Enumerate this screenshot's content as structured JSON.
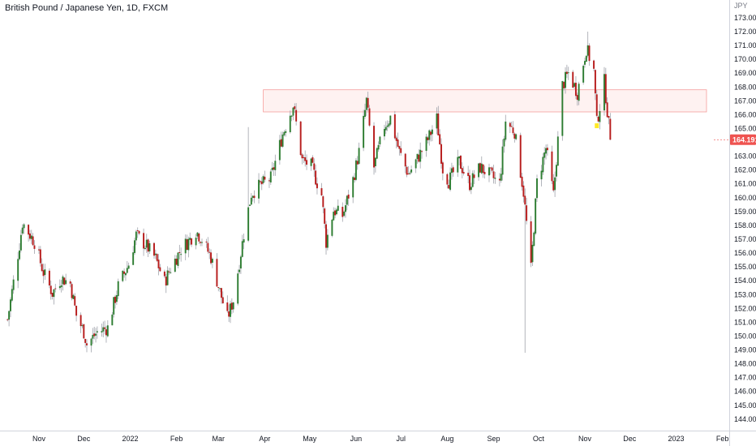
{
  "chart_data": {
    "type": "candlestick",
    "title": "British Pound / Japanese Yen, 1D, FXCM",
    "y_unit": "JPY",
    "ylim": [
      143.7,
      173.7
    ],
    "y_ticks": [
      "144.000",
      "145.000",
      "146.000",
      "147.000",
      "148.000",
      "149.000",
      "150.000",
      "151.000",
      "152.000",
      "153.000",
      "154.000",
      "155.000",
      "156.000",
      "157.000",
      "158.000",
      "159.000",
      "160.000",
      "161.000",
      "162.000",
      "163.000",
      "164.000",
      "165.000",
      "166.000",
      "167.000",
      "168.000",
      "169.000",
      "170.000",
      "171.000",
      "172.000",
      "173.000"
    ],
    "x_ticks": [
      {
        "label": "Nov",
        "date": "2021-11-01"
      },
      {
        "label": "Dec",
        "date": "2021-12-01"
      },
      {
        "label": "2022",
        "date": "2022-01-01"
      },
      {
        "label": "Feb",
        "date": "2022-02-01"
      },
      {
        "label": "Mar",
        "date": "2022-03-01"
      },
      {
        "label": "Apr",
        "date": "2022-04-01"
      },
      {
        "label": "May",
        "date": "2022-05-01"
      },
      {
        "label": "Jun",
        "date": "2022-06-01"
      },
      {
        "label": "Jul",
        "date": "2022-07-01"
      },
      {
        "label": "Aug",
        "date": "2022-08-01"
      },
      {
        "label": "Sep",
        "date": "2022-09-01"
      },
      {
        "label": "Oct",
        "date": "2022-10-01"
      },
      {
        "label": "Nov",
        "date": "2022-11-01"
      },
      {
        "label": "Dec",
        "date": "2022-12-01"
      },
      {
        "label": "2023",
        "date": "2023-01-01"
      },
      {
        "label": "Feb",
        "date": "2023-02-01"
      }
    ],
    "price_path": [
      [
        "2021-10-11",
        151.2
      ],
      [
        "2021-10-19",
        156.6
      ],
      [
        "2021-10-21",
        158.2
      ],
      [
        "2021-10-29",
        156.8
      ],
      [
        "2021-11-04",
        154.6
      ],
      [
        "2021-11-10",
        153.1
      ],
      [
        "2021-11-16",
        154.2
      ],
      [
        "2021-11-22",
        153.8
      ],
      [
        "2021-11-26",
        151.5
      ],
      [
        "2021-12-01",
        150.3
      ],
      [
        "2021-12-03",
        149.4
      ],
      [
        "2021-12-10",
        150.3
      ],
      [
        "2021-12-17",
        150.6
      ],
      [
        "2021-12-24",
        153.6
      ],
      [
        "2021-12-31",
        155.2
      ],
      [
        "2022-01-05",
        157.3
      ],
      [
        "2022-01-12",
        156.5
      ],
      [
        "2022-01-18",
        155.6
      ],
      [
        "2022-01-24",
        153.9
      ],
      [
        "2022-01-28",
        154.9
      ],
      [
        "2022-02-04",
        156.3
      ],
      [
        "2022-02-10",
        157.0
      ],
      [
        "2022-02-14",
        157.6
      ],
      [
        "2022-02-18",
        157.0
      ],
      [
        "2022-02-24",
        155.7
      ],
      [
        "2022-03-01",
        153.6
      ],
      [
        "2022-03-07",
        151.3
      ],
      [
        "2022-03-11",
        152.6
      ],
      [
        "2022-03-18",
        157.4
      ],
      [
        "2022-03-23",
        160.3
      ],
      [
        "2022-03-29",
        160.9
      ],
      [
        "2022-04-05",
        161.4
      ],
      [
        "2022-04-13",
        164.6
      ],
      [
        "2022-04-20",
        166.7
      ],
      [
        "2022-04-26",
        162.7
      ],
      [
        "2022-05-02",
        162.3
      ],
      [
        "2022-05-09",
        160.2
      ],
      [
        "2022-05-12",
        156.8
      ],
      [
        "2022-05-17",
        159.1
      ],
      [
        "2022-05-23",
        158.7
      ],
      [
        "2022-05-30",
        161.3
      ],
      [
        "2022-06-03",
        163.3
      ],
      [
        "2022-06-08",
        167.0
      ],
      [
        "2022-06-13",
        162.2
      ],
      [
        "2022-06-20",
        165.2
      ],
      [
        "2022-06-24",
        165.8
      ],
      [
        "2022-06-30",
        163.3
      ],
      [
        "2022-07-06",
        161.7
      ],
      [
        "2022-07-12",
        162.8
      ],
      [
        "2022-07-19",
        164.2
      ],
      [
        "2022-07-25",
        165.7
      ],
      [
        "2022-07-29",
        162.1
      ],
      [
        "2022-08-02",
        161.2
      ],
      [
        "2022-08-09",
        162.6
      ],
      [
        "2022-08-16",
        161.0
      ],
      [
        "2022-08-23",
        162.2
      ],
      [
        "2022-08-30",
        161.6
      ],
      [
        "2022-09-05",
        161.0
      ],
      [
        "2022-09-09",
        165.5
      ],
      [
        "2022-09-15",
        164.8
      ],
      [
        "2022-09-21",
        160.4
      ],
      [
        "2022-09-26",
        154.8
      ],
      [
        "2022-09-30",
        161.1
      ],
      [
        "2022-10-06",
        163.6
      ],
      [
        "2022-10-11",
        160.2
      ],
      [
        "2022-10-17",
        168.1
      ],
      [
        "2022-10-21",
        169.0
      ],
      [
        "2022-10-27",
        167.6
      ],
      [
        "2022-11-02",
        170.8
      ],
      [
        "2022-11-07",
        169.2
      ],
      [
        "2022-11-09",
        165.4
      ],
      [
        "2022-11-14",
        168.4
      ],
      [
        "2022-11-18",
        164.2
      ]
    ],
    "session_lows": [
      {
        "date": "2022-09-22",
        "low": 148.8
      },
      {
        "date": "2022-03-21",
        "high": 165.1
      },
      {
        "date": "2022-11-03",
        "high": 172.0
      }
    ],
    "zones": [
      {
        "from": "2022-03-31",
        "to": "2023-02-01",
        "low": 166.2,
        "high": 167.8,
        "fill": "#ef5350"
      }
    ],
    "markers": [
      {
        "date": "2022-11-09",
        "value": 165.2,
        "color": "#ffe500"
      }
    ],
    "last_price": 164.191,
    "last_price_label": "164.191",
    "colors": {
      "up": "#26a69a",
      "down": "#ef5350",
      "up_body": "#2e7d32",
      "down_body": "#b71c1c",
      "wick": "#a0a3ab",
      "axis": "#d1d4dc"
    },
    "grid": false,
    "legend": "none"
  }
}
